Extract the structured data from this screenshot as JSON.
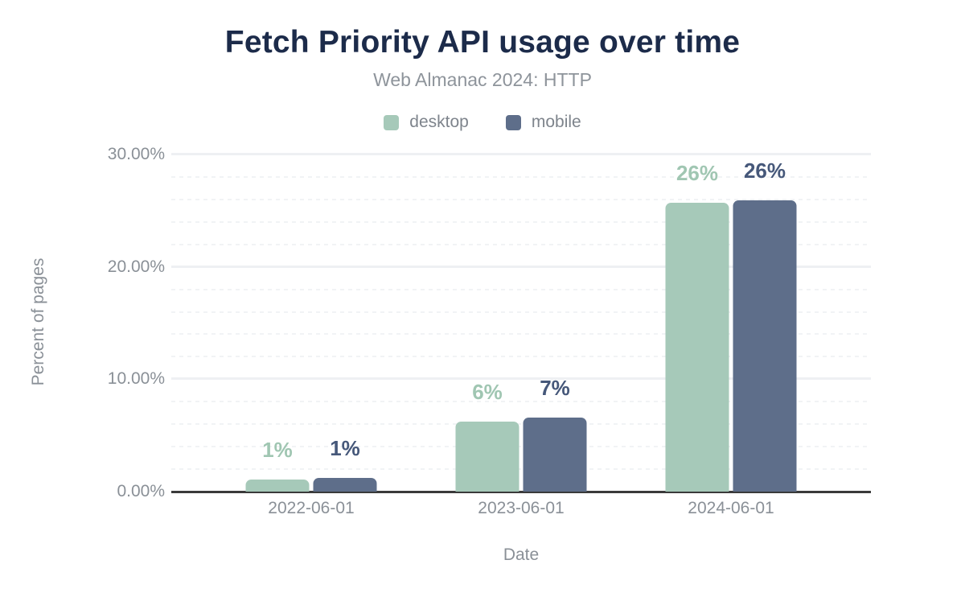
{
  "chart_data": {
    "type": "bar",
    "title": "Fetch Priority API usage over time",
    "subtitle": "Web Almanac 2024: HTTP",
    "xlabel": "Date",
    "ylabel": "Percent of pages",
    "categories": [
      "2022-06-01",
      "2023-06-01",
      "2024-06-01"
    ],
    "series": [
      {
        "name": "desktop",
        "color": "#a6c9b9",
        "label_color": "#a0c6b2",
        "values": [
          1.1,
          6.2,
          25.7
        ],
        "labels": [
          "1%",
          "6%",
          "26%"
        ]
      },
      {
        "name": "mobile",
        "color": "#5e6e8a",
        "label_color": "#46587a",
        "values": [
          1.2,
          6.6,
          25.9
        ],
        "labels": [
          "1%",
          "7%",
          "26%"
        ]
      }
    ],
    "ylim": [
      0,
      30
    ],
    "yticks": [
      {
        "value": 0,
        "label": "0.00%"
      },
      {
        "value": 10,
        "label": "10.00%"
      },
      {
        "value": 20,
        "label": "20.00%"
      },
      {
        "value": 30,
        "label": "30.00%"
      }
    ],
    "grid": {
      "major_step": 10,
      "minor_step": 2,
      "minor_style": "dotted",
      "grid_on": true
    },
    "legend_position": "top",
    "colors": {
      "title": "#1c2b4a",
      "subtitle": "#8e949b",
      "axis_text": "#8a9097",
      "axis_line": "#3a3a3a",
      "grid_major": "#eef0f3",
      "grid_minor": "#f1f3f5",
      "background": "#ffffff"
    }
  }
}
